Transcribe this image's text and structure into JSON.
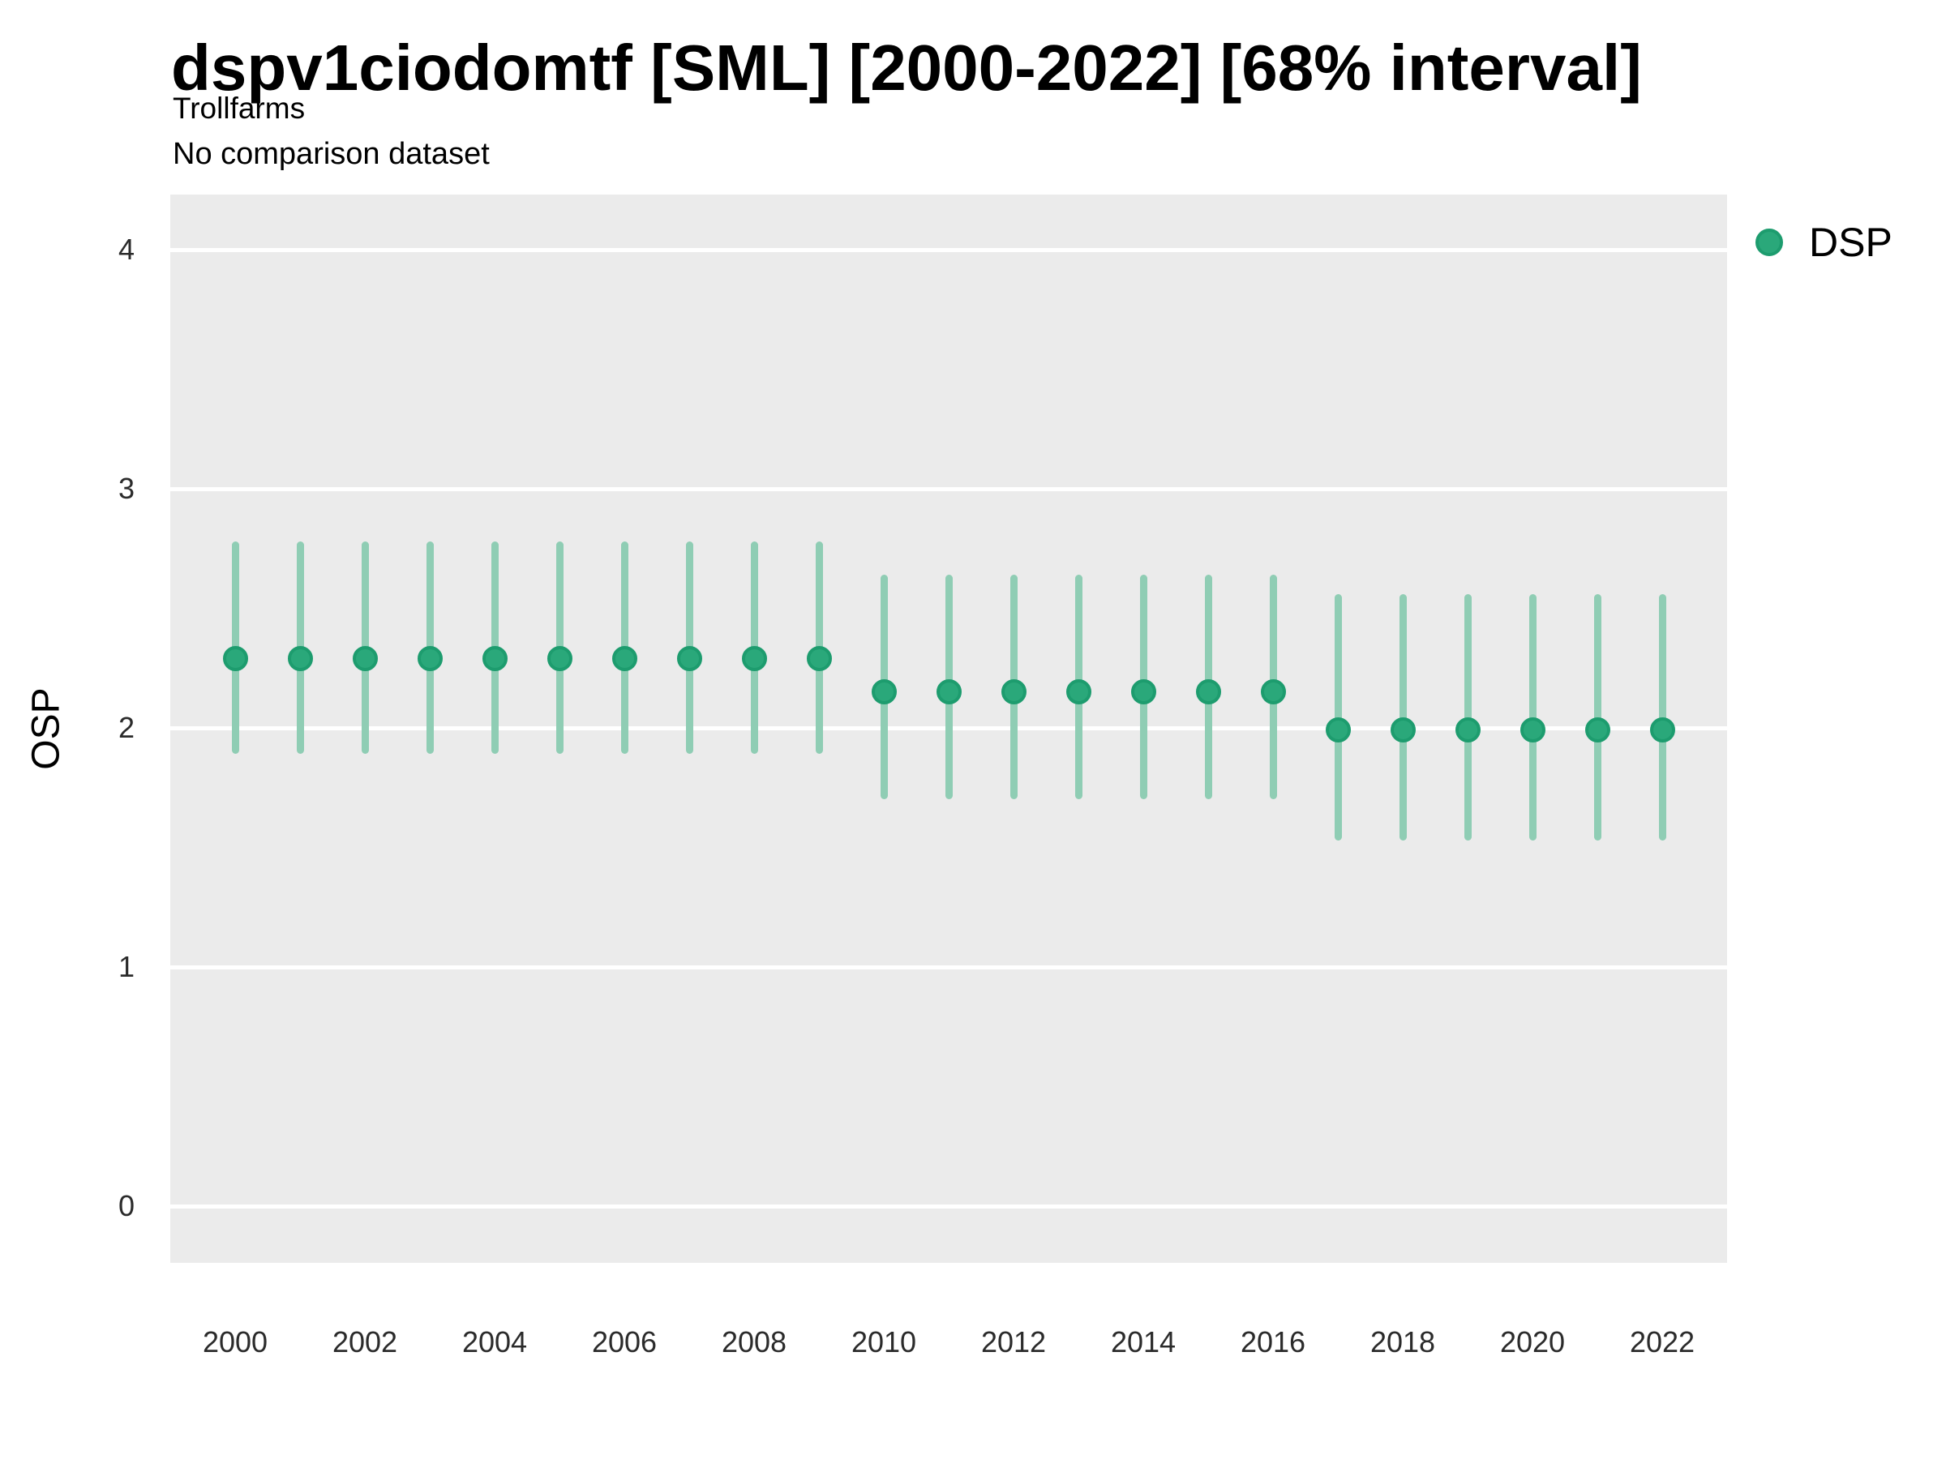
{
  "header": {
    "title": "dspv1ciodomtf [SML] [2000-2022] [68% interval]",
    "subtitle": "Trollfarms",
    "note": "No comparison dataset"
  },
  "legend": {
    "position": "right-top",
    "label": "DSP",
    "marker_color": "#2AA87A",
    "marker_border_color": "#1D9C6E"
  },
  "colors": {
    "background": "#FFFFFF",
    "panel_background": "#EBEBEB",
    "gridline": "#FFFFFF",
    "point_fill": "#2AA87A",
    "point_border": "#1D9C6E",
    "interval_bar": "#8FCDB4",
    "tick_text": "#2B2B2B",
    "title_text": "#000000"
  },
  "chart_data": {
    "type": "scatter",
    "subtype": "pointrange",
    "title": "dspv1ciodomtf [SML] [2000-2022] [68% interval]",
    "subtitle": "Trollfarms",
    "annotation": "No comparison dataset",
    "interval_level": "68%",
    "xlabel": "",
    "ylabel": "OSP",
    "x_tick_labels": [
      "2000",
      "2002",
      "2004",
      "2006",
      "2008",
      "2010",
      "2012",
      "2014",
      "2016",
      "2018",
      "2020",
      "2022"
    ],
    "y_tick_labels": [
      "4",
      "3",
      "2",
      "1",
      "0"
    ],
    "y_ticks": [
      4,
      3,
      2,
      1,
      0
    ],
    "ylim": [
      -0.2,
      4.23
    ],
    "xlim": [
      1999,
      2023
    ],
    "grid": "white major horizontal gridlines on gray panel",
    "legend_entries": [
      "DSP"
    ],
    "series": [
      {
        "name": "DSP",
        "points": [
          {
            "x": 2000,
            "y": 2.29,
            "lo": 1.89,
            "hi": 2.78
          },
          {
            "x": 2001,
            "y": 2.29,
            "lo": 1.89,
            "hi": 2.78
          },
          {
            "x": 2002,
            "y": 2.29,
            "lo": 1.89,
            "hi": 2.78
          },
          {
            "x": 2003,
            "y": 2.29,
            "lo": 1.89,
            "hi": 2.78
          },
          {
            "x": 2004,
            "y": 2.29,
            "lo": 1.89,
            "hi": 2.78
          },
          {
            "x": 2005,
            "y": 2.29,
            "lo": 1.89,
            "hi": 2.78
          },
          {
            "x": 2006,
            "y": 2.29,
            "lo": 1.89,
            "hi": 2.78
          },
          {
            "x": 2007,
            "y": 2.29,
            "lo": 1.89,
            "hi": 2.78
          },
          {
            "x": 2008,
            "y": 2.29,
            "lo": 1.89,
            "hi": 2.78
          },
          {
            "x": 2009,
            "y": 2.29,
            "lo": 1.89,
            "hi": 2.78
          },
          {
            "x": 2010,
            "y": 2.15,
            "lo": 1.7,
            "hi": 2.64
          },
          {
            "x": 2011,
            "y": 2.15,
            "lo": 1.7,
            "hi": 2.64
          },
          {
            "x": 2012,
            "y": 2.15,
            "lo": 1.7,
            "hi": 2.64
          },
          {
            "x": 2013,
            "y": 2.15,
            "lo": 1.7,
            "hi": 2.64
          },
          {
            "x": 2014,
            "y": 2.15,
            "lo": 1.7,
            "hi": 2.64
          },
          {
            "x": 2015,
            "y": 2.15,
            "lo": 1.7,
            "hi": 2.64
          },
          {
            "x": 2016,
            "y": 2.15,
            "lo": 1.7,
            "hi": 2.64
          },
          {
            "x": 2017,
            "y": 1.99,
            "lo": 1.53,
            "hi": 2.56
          },
          {
            "x": 2018,
            "y": 1.99,
            "lo": 1.53,
            "hi": 2.56
          },
          {
            "x": 2019,
            "y": 1.99,
            "lo": 1.53,
            "hi": 2.56
          },
          {
            "x": 2020,
            "y": 1.99,
            "lo": 1.53,
            "hi": 2.56
          },
          {
            "x": 2021,
            "y": 1.99,
            "lo": 1.53,
            "hi": 2.56
          },
          {
            "x": 2022,
            "y": 1.99,
            "lo": 1.53,
            "hi": 2.56
          }
        ]
      }
    ]
  }
}
